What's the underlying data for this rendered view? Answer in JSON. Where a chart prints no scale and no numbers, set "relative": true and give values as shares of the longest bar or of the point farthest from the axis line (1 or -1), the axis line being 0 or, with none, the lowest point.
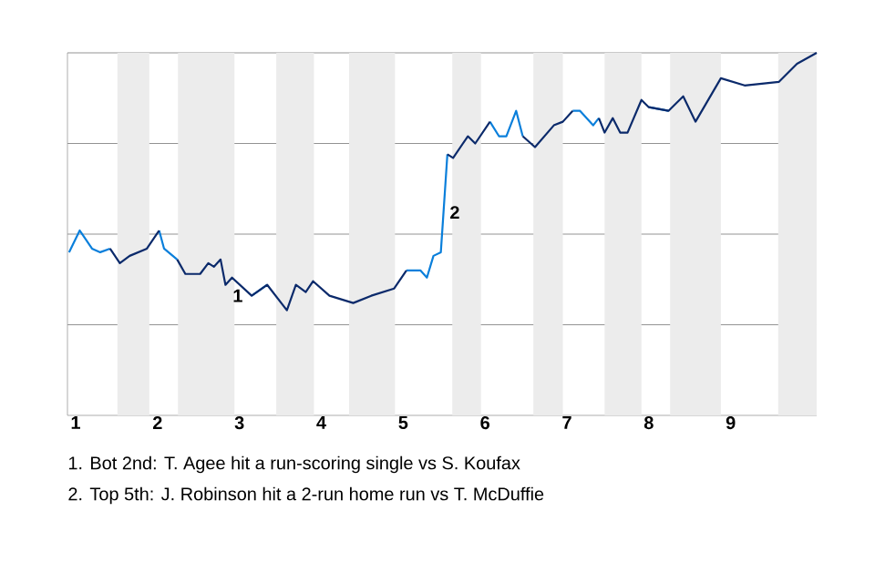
{
  "chart_data": {
    "type": "line",
    "relative": true,
    "grid": "y",
    "x": [
      0.92,
      1.05,
      1.2,
      1.3,
      1.42,
      1.54,
      1.66,
      1.87,
      2.02,
      2.08,
      2.24,
      2.34,
      2.52,
      2.62,
      2.69,
      2.77,
      2.83,
      2.91,
      3.15,
      3.34,
      3.58,
      3.69,
      3.81,
      3.9,
      4.1,
      4.39,
      4.61,
      4.89,
      5.04,
      5.21,
      5.29,
      5.37,
      5.46,
      5.54,
      5.61,
      5.79,
      5.88,
      6.06,
      6.17,
      6.26,
      6.38,
      6.46,
      6.61,
      6.84,
      6.95,
      7.07,
      7.16,
      7.32,
      7.39,
      7.46,
      7.56,
      7.65,
      7.74,
      7.91,
      8.0,
      8.24,
      8.42,
      8.57,
      8.88,
      9.17,
      9.59,
      9.81,
      10.05
    ],
    "xlim": [
      0.9,
      10.05
    ],
    "xticks": [
      1,
      2,
      3,
      4,
      5,
      6,
      7,
      8,
      9
    ],
    "series": [
      {
        "color": "#0a7fdb",
        "values": [
          0.45,
          0.51,
          0.46,
          0.45,
          0.46,
          null,
          null,
          null,
          0.51,
          0.46,
          0.43,
          null,
          null,
          null,
          null,
          null,
          null,
          null,
          0.33,
          0.36,
          null,
          null,
          null,
          null,
          null,
          null,
          null,
          null,
          0.4,
          0.4,
          0.38,
          0.44,
          0.45,
          0.72,
          null,
          null,
          null,
          0.81,
          0.77,
          0.77,
          0.84,
          0.77,
          null,
          null,
          null,
          0.84,
          0.84,
          0.8,
          0.82,
          null,
          null,
          null,
          null,
          null,
          0.85,
          0.84,
          null,
          null,
          null,
          null,
          null,
          null,
          null
        ]
      },
      {
        "color": "#0b2a6b",
        "values": [
          null,
          null,
          null,
          null,
          0.46,
          0.42,
          0.44,
          0.46,
          0.51,
          null,
          0.43,
          0.39,
          0.39,
          0.42,
          0.41,
          0.43,
          0.36,
          0.38,
          0.33,
          0.36,
          0.29,
          0.36,
          0.34,
          0.37,
          0.33,
          0.31,
          0.33,
          0.35,
          0.4,
          null,
          null,
          null,
          null,
          0.72,
          0.71,
          0.77,
          0.75,
          0.81,
          null,
          null,
          null,
          0.77,
          0.74,
          0.8,
          0.81,
          0.84,
          null,
          null,
          0.82,
          0.78,
          0.82,
          0.78,
          0.78,
          0.87,
          0.85,
          0.84,
          0.88,
          0.81,
          0.93,
          0.91,
          0.92,
          0.97,
          1.0
        ]
      }
    ],
    "bands": [
      {
        "axis": "x",
        "from": 1.51,
        "to": 1.9,
        "color": "#ececec"
      },
      {
        "axis": "x",
        "from": 2.25,
        "to": 2.94,
        "color": "#ececec"
      },
      {
        "axis": "x",
        "from": 3.45,
        "to": 3.91,
        "color": "#ececec"
      },
      {
        "axis": "x",
        "from": 4.34,
        "to": 4.9,
        "color": "#ececec"
      },
      {
        "axis": "x",
        "from": 5.6,
        "to": 5.95,
        "color": "#ececec"
      },
      {
        "axis": "x",
        "from": 6.59,
        "to": 6.95,
        "color": "#ececec"
      },
      {
        "axis": "x",
        "from": 7.46,
        "to": 7.91,
        "color": "#ececec"
      },
      {
        "axis": "x",
        "from": 8.26,
        "to": 8.88,
        "color": "#ececec"
      },
      {
        "axis": "x",
        "from": 9.58,
        "to": 10.05,
        "color": "#ececec"
      }
    ],
    "annotations": [
      {
        "text": "1",
        "x": 2.98,
        "y": 0.33
      },
      {
        "text": "2",
        "x": 5.63,
        "y": 0.56
      },
      "1. Bot 2nd: T. Agee hit a run-scoring single vs S. Koufax",
      "2. Top 5th: J. Robinson hit a 2-run home run vs T. McDuffie"
    ]
  }
}
